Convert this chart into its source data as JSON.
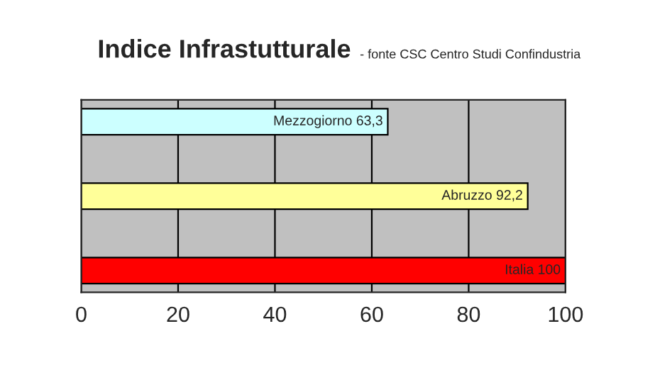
{
  "chart_data": {
    "type": "bar",
    "orientation": "horizontal",
    "title": "Indice Infrastutturale",
    "subtitle": "- fonte CSC Centro Studi Confindustria",
    "categories": [
      null,
      null,
      null
    ],
    "values": [
      63.3,
      92.2,
      100
    ],
    "colors": [
      "#ccffff",
      "#ffff99",
      "#ff0000"
    ],
    "value_labels": [
      "Mezzogiorno 63,3",
      "Abruzzo 92,2",
      "Italia 100"
    ],
    "xlim": [
      0,
      100
    ],
    "xticks": [
      0,
      20,
      40,
      60,
      80,
      100
    ],
    "grid": "x"
  }
}
